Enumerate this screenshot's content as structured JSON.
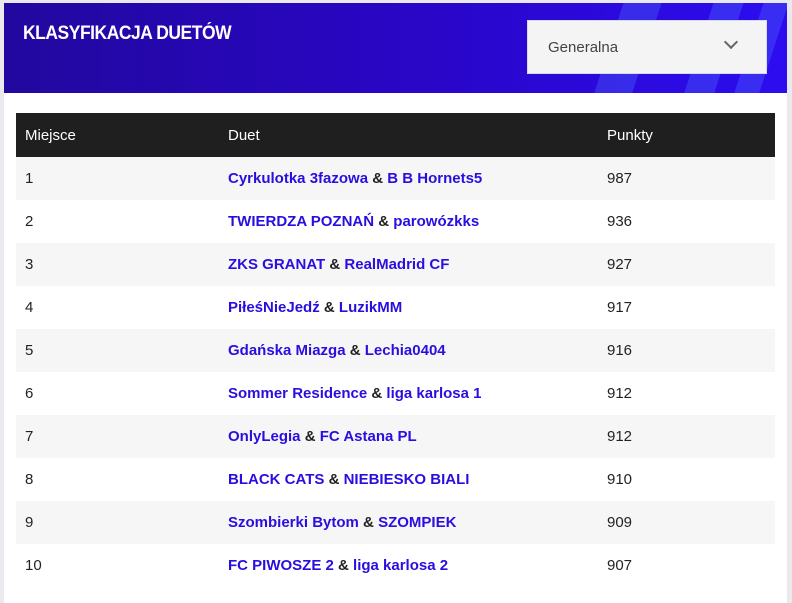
{
  "header": {
    "title": "KLASYFIKACJA DUETÓW",
    "select_value": "Generalna",
    "icon": "chevron-down-icon"
  },
  "colors": {
    "accent": "#2a0ee0",
    "header_bg": "#2a06c8",
    "table_header_bg": "#1f1f1f"
  },
  "table": {
    "columns": [
      "Miejsce",
      "Duet",
      "Punkty"
    ],
    "separator": "&",
    "rows": [
      {
        "place": "1",
        "team1": "Cyrkulotka 3fazowa",
        "team2": "B B Hornets5",
        "points": "987"
      },
      {
        "place": "2",
        "team1": "TWIERDZA POZNAŃ",
        "team2": "parowózkks",
        "points": "936"
      },
      {
        "place": "3",
        "team1": "ZKS GRANAT",
        "team2": "RealMadrid CF",
        "points": "927"
      },
      {
        "place": "4",
        "team1": "PiłeśNieJedź",
        "team2": "LuzikMM",
        "points": "917"
      },
      {
        "place": "5",
        "team1": "Gdańska Miazga",
        "team2": "Lechia0404",
        "points": "916"
      },
      {
        "place": "6",
        "team1": "Sommer Residence",
        "team2": "liga karlosa 1",
        "points": "912"
      },
      {
        "place": "7",
        "team1": "OnlyLegia",
        "team2": "FC Astana PL",
        "points": "912"
      },
      {
        "place": "8",
        "team1": "BLACK CATS",
        "team2": "NIEBIESKO BIALI",
        "points": "910"
      },
      {
        "place": "9",
        "team1": "Szombierki Bytom",
        "team2": "SZOMPIEK",
        "points": "909"
      },
      {
        "place": "10",
        "team1": "FC PIWOSZE 2",
        "team2": "liga karlosa 2",
        "points": "907"
      }
    ]
  }
}
